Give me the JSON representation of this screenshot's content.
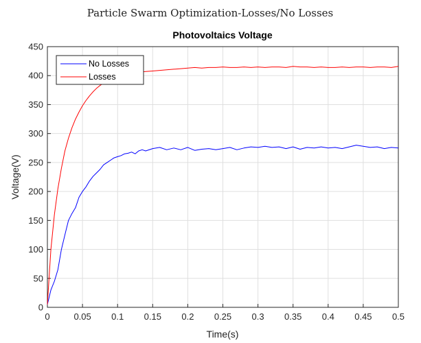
{
  "suptitle": "Particle Swarm Optimization-Losses/No Losses",
  "chart_data": {
    "type": "line",
    "title": "Photovoltaics Voltage",
    "xlabel": "Time(s)",
    "ylabel": "Voltage(V)",
    "xlim": [
      0,
      0.5
    ],
    "ylim": [
      0,
      450
    ],
    "xticks": [
      0,
      0.05,
      0.1,
      0.15,
      0.2,
      0.25,
      0.3,
      0.35,
      0.4,
      0.45,
      0.5
    ],
    "xtick_labels": [
      "0",
      "0.05",
      "0.1",
      "0.15",
      "0.2",
      "0.25",
      "0.3",
      "0.35",
      "0.4",
      "0.45",
      "0.5"
    ],
    "yticks": [
      0,
      50,
      100,
      150,
      200,
      250,
      300,
      350,
      400,
      450
    ],
    "ytick_labels": [
      "0",
      "50",
      "100",
      "150",
      "200",
      "250",
      "300",
      "350",
      "400",
      "450"
    ],
    "grid": true,
    "legend_position": "top-left",
    "series": [
      {
        "name": "No Losses",
        "color": "#0000ff",
        "x": [
          0,
          0.005,
          0.01,
          0.015,
          0.02,
          0.025,
          0.03,
          0.035,
          0.04,
          0.045,
          0.05,
          0.055,
          0.06,
          0.065,
          0.07,
          0.075,
          0.08,
          0.085,
          0.09,
          0.095,
          0.1,
          0.105,
          0.11,
          0.115,
          0.12,
          0.125,
          0.13,
          0.135,
          0.14,
          0.15,
          0.16,
          0.17,
          0.18,
          0.19,
          0.2,
          0.21,
          0.22,
          0.23,
          0.24,
          0.25,
          0.26,
          0.27,
          0.28,
          0.29,
          0.3,
          0.31,
          0.32,
          0.33,
          0.34,
          0.35,
          0.36,
          0.37,
          0.38,
          0.39,
          0.4,
          0.41,
          0.42,
          0.43,
          0.44,
          0.45,
          0.46,
          0.47,
          0.48,
          0.49,
          0.5
        ],
        "y": [
          5,
          30,
          45,
          65,
          100,
          125,
          150,
          162,
          172,
          190,
          200,
          208,
          218,
          226,
          232,
          238,
          246,
          250,
          254,
          258,
          260,
          262,
          265,
          266,
          268,
          265,
          270,
          272,
          270,
          274,
          276,
          272,
          275,
          272,
          276,
          271,
          273,
          274,
          272,
          274,
          276,
          272,
          275,
          277,
          276,
          278,
          276,
          277,
          274,
          277,
          273,
          276,
          275,
          277,
          275,
          276,
          274,
          277,
          280,
          278,
          276,
          277,
          274,
          276,
          275
        ]
      },
      {
        "name": "Losses",
        "color": "#ff0000",
        "x": [
          0,
          0.005,
          0.01,
          0.015,
          0.02,
          0.025,
          0.03,
          0.035,
          0.04,
          0.045,
          0.05,
          0.055,
          0.06,
          0.065,
          0.07,
          0.075,
          0.08,
          0.085,
          0.09,
          0.095,
          0.1,
          0.11,
          0.12,
          0.13,
          0.14,
          0.15,
          0.16,
          0.17,
          0.18,
          0.19,
          0.2,
          0.21,
          0.22,
          0.23,
          0.24,
          0.25,
          0.26,
          0.27,
          0.28,
          0.29,
          0.3,
          0.31,
          0.32,
          0.33,
          0.34,
          0.35,
          0.36,
          0.37,
          0.38,
          0.39,
          0.4,
          0.41,
          0.42,
          0.43,
          0.44,
          0.45,
          0.46,
          0.47,
          0.48,
          0.49,
          0.5
        ],
        "y": [
          5,
          100,
          160,
          205,
          240,
          270,
          292,
          310,
          325,
          337,
          348,
          357,
          365,
          372,
          378,
          383,
          387,
          390,
          393,
          396,
          398,
          401,
          404,
          406,
          407,
          408,
          409,
          410,
          411,
          412,
          413,
          414,
          413,
          414,
          414,
          415,
          414,
          414,
          415,
          414,
          415,
          414,
          415,
          415,
          414,
          416,
          415,
          415,
          414,
          415,
          414,
          414,
          415,
          414,
          415,
          415,
          414,
          415,
          415,
          414,
          416
        ]
      }
    ]
  }
}
